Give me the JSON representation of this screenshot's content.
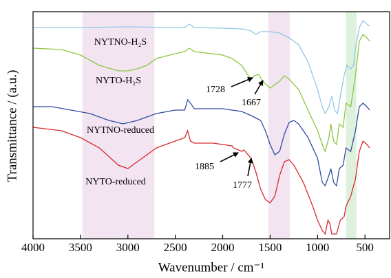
{
  "chart_data": {
    "type": "line",
    "xlabel": "Wavenumber / cm⁻¹",
    "ylabel": "Transmittance / (a.u.)",
    "xlim": [
      4000,
      240
    ],
    "xticks": [
      4000,
      3500,
      3000,
      2500,
      2000,
      1500,
      1000,
      500
    ],
    "ylim": [
      0,
      330
    ],
    "shaded_regions": [
      {
        "range": [
          3480,
          2720
        ],
        "color": "#f3e4f2"
      },
      {
        "range": [
          1520,
          1290
        ],
        "color": "#f3e4f2"
      },
      {
        "range": [
          700,
          590
        ],
        "color": "#ddf1dc"
      }
    ],
    "series": [
      {
        "name": "NYTNO-H₂S",
        "color": "#8ec8e6",
        "x": [
          4000,
          3500,
          3000,
          2500,
          2400,
          2350,
          2300,
          2000,
          1800,
          1700,
          1650,
          1600,
          1500,
          1400,
          1300,
          1200,
          1100,
          1000,
          950,
          920,
          880,
          850,
          820,
          790,
          760,
          720,
          690,
          650,
          620,
          600,
          560,
          520,
          480,
          450
        ],
        "values": [
          307,
          307,
          308,
          307,
          307,
          312,
          307,
          306,
          305,
          302,
          297,
          301,
          301,
          299,
          292,
          282,
          257,
          217,
          192,
          182,
          192,
          207,
          187,
          182,
          207,
          237,
          252,
          247,
          252,
          277,
          307,
          317,
          312,
          309
        ]
      },
      {
        "name": "NYTO-H₂S",
        "color": "#8cc63f",
        "x": [
          4000,
          3700,
          3500,
          3300,
          3100,
          3000,
          2900,
          2800,
          2700,
          2500,
          2400,
          2350,
          2300,
          2000,
          1900,
          1800,
          1730,
          1700,
          1667,
          1620,
          1580,
          1500,
          1400,
          1350,
          1300,
          1200,
          1100,
          1000,
          950,
          920,
          880,
          860,
          830,
          800,
          770,
          730,
          700,
          650,
          600,
          560,
          520,
          480,
          450
        ],
        "values": [
          277,
          275,
          267,
          252,
          244,
          244,
          247,
          252,
          262,
          269,
          272,
          277,
          272,
          267,
          262,
          252,
          237,
          232,
          237,
          239,
          229,
          219,
          229,
          237,
          232,
          217,
          187,
          157,
          137,
          127,
          147,
          167,
          142,
          137,
          167,
          162,
          197,
          192,
          237,
          287,
          297,
          292,
          287
        ]
      },
      {
        "name": "NYTNO-reduced",
        "color": "#2f4b9f",
        "x": [
          4000,
          3800,
          3600,
          3400,
          3200,
          3050,
          2900,
          2700,
          2500,
          2400,
          2370,
          2340,
          2300,
          2000,
          1900,
          1800,
          1700,
          1600,
          1550,
          1500,
          1450,
          1400,
          1350,
          1300,
          1250,
          1200,
          1100,
          1000,
          950,
          920,
          880,
          860,
          830,
          800,
          770,
          730,
          700,
          650,
          600,
          560,
          520,
          480,
          450
        ],
        "values": [
          192,
          192,
          187,
          182,
          172,
          167,
          172,
          182,
          187,
          187,
          202,
          197,
          189,
          189,
          187,
          185,
          179,
          172,
          157,
          137,
          122,
          127,
          152,
          169,
          172,
          167,
          147,
          117,
          82,
          77,
          92,
          102,
          82,
          77,
          102,
          107,
          132,
          127,
          157,
          192,
          197,
          192,
          187
        ]
      },
      {
        "name": "NYTO-reduced",
        "color": "#d9272e",
        "x": [
          4000,
          3700,
          3500,
          3300,
          3100,
          3000,
          2900,
          2700,
          2500,
          2400,
          2370,
          2340,
          2300,
          2100,
          2000,
          1900,
          1885,
          1800,
          1777,
          1700,
          1650,
          1600,
          1550,
          1500,
          1450,
          1400,
          1350,
          1300,
          1250,
          1150,
          1050,
          1000,
          950,
          920,
          890,
          870,
          850,
          800,
          760,
          720,
          700,
          650,
          600,
          560,
          520,
          480,
          450
        ],
        "values": [
          162,
          157,
          147,
          132,
          107,
          102,
          112,
          132,
          142,
          147,
          157,
          142,
          139,
          139,
          137,
          135,
          132,
          127,
          129,
          117,
          97,
          72,
          57,
          52,
          62,
          92,
          112,
          115,
          107,
          82,
          47,
          27,
          12,
          7,
          27,
          22,
          7,
          7,
          27,
          32,
          47,
          62,
          87,
          127,
          142,
          137,
          132
        ]
      }
    ],
    "annotations": [
      {
        "text": "1728"
      },
      {
        "text": "1667"
      },
      {
        "text": "1885"
      },
      {
        "text": "1777"
      }
    ]
  }
}
